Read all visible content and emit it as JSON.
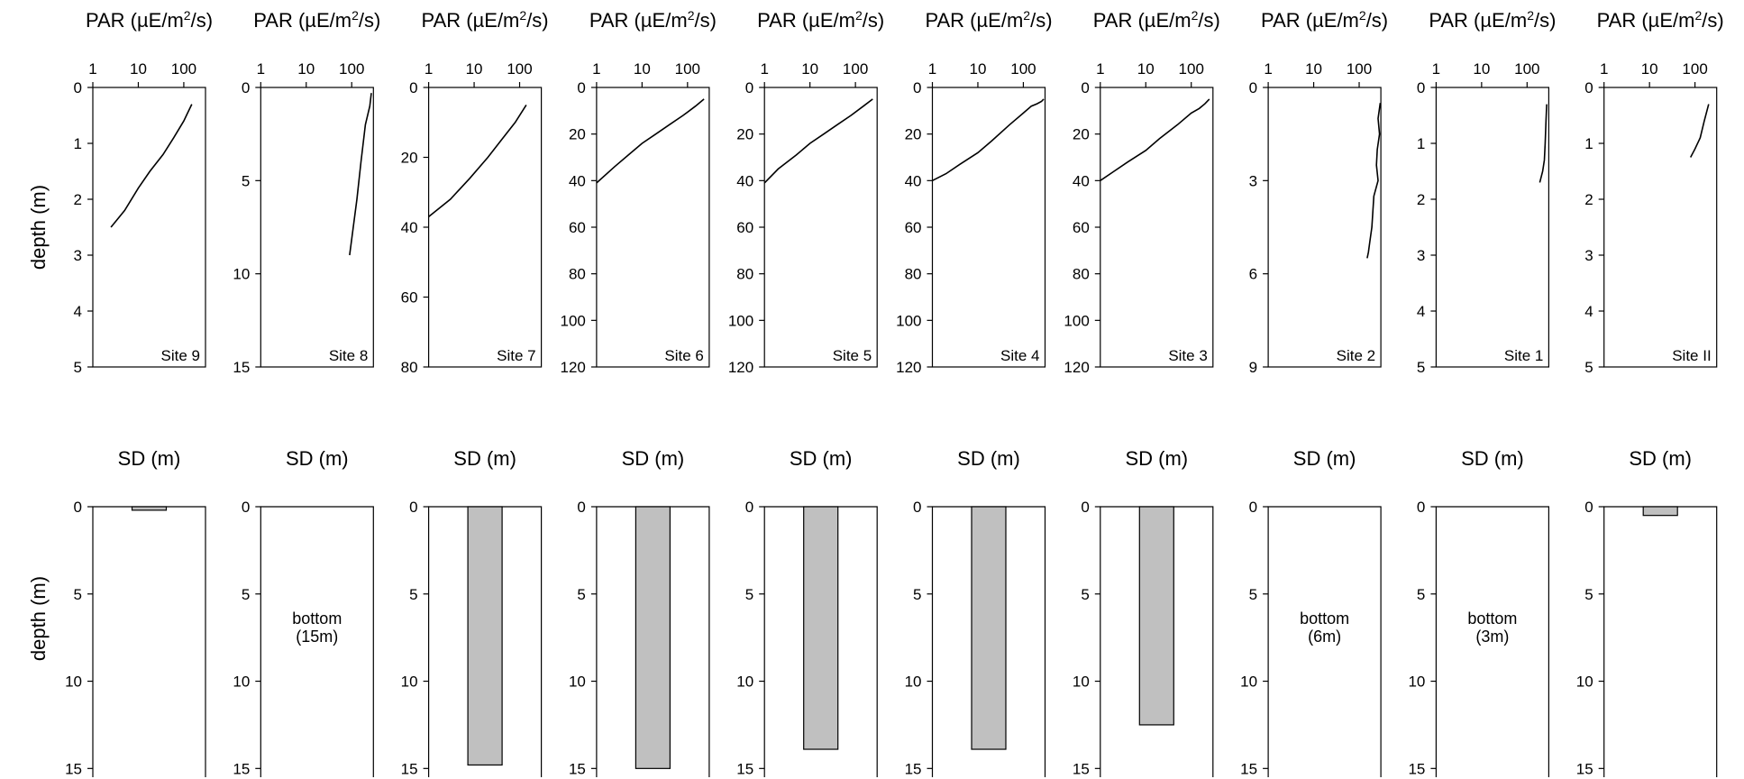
{
  "chart_data": [
    {
      "type": "line",
      "site": "Site 9",
      "title": "PAR (µE/m2/s)",
      "title_base": "PAR (µE/m",
      "title_sup": "2",
      "title_end": "/s)",
      "xscale": "log",
      "xlim": [
        1,
        300
      ],
      "xticks": [
        "1",
        "10",
        "100"
      ],
      "ylabel": "depth (m)",
      "ylim": [
        0,
        5
      ],
      "yticks": [
        "0",
        "1",
        "2",
        "3",
        "4",
        "5"
      ],
      "profile": {
        "par": [
          150,
          100,
          60,
          35,
          18,
          10,
          5,
          2.5
        ],
        "depth": [
          0.3,
          0.6,
          0.9,
          1.2,
          1.5,
          1.8,
          2.2,
          2.5
        ]
      }
    },
    {
      "type": "line",
      "site": "Site 8",
      "title": "PAR (µE/m2/s)",
      "title_base": "PAR (µE/m",
      "title_sup": "2",
      "title_end": "/s)",
      "xscale": "log",
      "xlim": [
        1,
        300
      ],
      "xticks": [
        "1",
        "10",
        "100"
      ],
      "ylim": [
        0,
        15
      ],
      "yticks": [
        "0",
        "5",
        "10",
        "15"
      ],
      "profile": {
        "par": [
          270,
          250,
          200,
          160,
          130,
          90
        ],
        "depth": [
          0.3,
          1,
          2,
          4,
          6,
          9
        ]
      }
    },
    {
      "type": "line",
      "site": "Site 7",
      "title": "PAR (µE/m2/s)",
      "title_base": "PAR (µE/m",
      "title_sup": "2",
      "title_end": "/s)",
      "xscale": "log",
      "xlim": [
        1,
        300
      ],
      "xticks": [
        "1",
        "10",
        "100"
      ],
      "ylim": [
        0,
        80
      ],
      "yticks": [
        "0",
        "20",
        "40",
        "60",
        "80"
      ],
      "profile": {
        "par": [
          140,
          80,
          40,
          20,
          8,
          3,
          1
        ],
        "depth": [
          5,
          10,
          15,
          20,
          26,
          32,
          37
        ]
      }
    },
    {
      "type": "line",
      "site": "Site 6",
      "title": "PAR (µE/m2/s)",
      "title_base": "PAR (µE/m",
      "title_sup": "2",
      "title_end": "/s)",
      "xscale": "log",
      "xlim": [
        1,
        300
      ],
      "xticks": [
        "1",
        "10",
        "100"
      ],
      "ylim": [
        0,
        120
      ],
      "yticks": [
        "0",
        "20",
        "40",
        "60",
        "80",
        "100",
        "120"
      ],
      "profile": {
        "par": [
          230,
          150,
          80,
          40,
          20,
          10,
          5,
          2.5,
          1
        ],
        "depth": [
          5,
          8,
          12,
          16,
          20,
          24,
          29,
          34,
          41
        ]
      }
    },
    {
      "type": "line",
      "site": "Site 5",
      "title": "PAR (µE/m2/s)",
      "title_base": "PAR (µE/m",
      "title_sup": "2",
      "title_end": "/s)",
      "xscale": "log",
      "xlim": [
        1,
        300
      ],
      "xticks": [
        "1",
        "10",
        "100"
      ],
      "ylim": [
        0,
        120
      ],
      "yticks": [
        "0",
        "20",
        "40",
        "60",
        "80",
        "100",
        "120"
      ],
      "profile": {
        "par": [
          240,
          150,
          80,
          40,
          20,
          10,
          5,
          2,
          1
        ],
        "depth": [
          5,
          8,
          12,
          16,
          20,
          24,
          29,
          35,
          41
        ]
      }
    },
    {
      "type": "line",
      "site": "Site 4",
      "title": "PAR (µE/m2/s)",
      "title_base": "PAR (µE/m",
      "title_sup": "2",
      "title_end": "/s)",
      "xscale": "log",
      "xlim": [
        1,
        300
      ],
      "xticks": [
        "1",
        "10",
        "100"
      ],
      "ylim": [
        0,
        120
      ],
      "yticks": [
        "0",
        "20",
        "40",
        "60",
        "80",
        "100",
        "120"
      ],
      "profile": {
        "par": [
          280,
          250,
          200,
          150,
          100,
          50,
          20,
          10,
          4,
          2,
          1
        ],
        "depth": [
          5,
          6,
          7,
          8,
          11,
          16,
          23,
          28,
          33,
          37,
          40
        ]
      }
    },
    {
      "type": "line",
      "site": "Site 3",
      "title": "PAR (µE/m2/s)",
      "title_base": "PAR (µE/m",
      "title_sup": "2",
      "title_end": "/s)",
      "xscale": "log",
      "xlim": [
        1,
        300
      ],
      "xticks": [
        "1",
        "10",
        "100"
      ],
      "ylim": [
        0,
        120
      ],
      "yticks": [
        "0",
        "20",
        "40",
        "60",
        "80",
        "100",
        "120"
      ],
      "profile": {
        "par": [
          250,
          200,
          150,
          100,
          50,
          20,
          10,
          4,
          2,
          1
        ],
        "depth": [
          5,
          7,
          9,
          11,
          16,
          22,
          27,
          32,
          36,
          40
        ]
      }
    },
    {
      "type": "line",
      "site": "Site 2",
      "title": "PAR (µE/m2/s)",
      "title_base": "PAR (µE/m",
      "title_sup": "2",
      "title_end": "/s)",
      "xscale": "log",
      "xlim": [
        1,
        300
      ],
      "xticks": [
        "1",
        "10",
        "100"
      ],
      "ylim": [
        0,
        9
      ],
      "yticks": [
        "0",
        "3",
        "6",
        "9"
      ],
      "profile": {
        "par": [
          290,
          260,
          280,
          250,
          240,
          260,
          210,
          200,
          190,
          170,
          160,
          150
        ],
        "depth": [
          0.5,
          1,
          1.5,
          2,
          2.5,
          3,
          3.5,
          4,
          4.5,
          5,
          5.3,
          5.5
        ]
      }
    },
    {
      "type": "line",
      "site": "Site 1",
      "title": "PAR (µE/m2/s)",
      "title_base": "PAR (µE/m",
      "title_sup": "2",
      "title_end": "/s)",
      "xscale": "log",
      "xlim": [
        1,
        300
      ],
      "xticks": [
        "1",
        "10",
        "100"
      ],
      "ylim": [
        0,
        5
      ],
      "yticks": [
        "0",
        "1",
        "2",
        "3",
        "4",
        "5"
      ],
      "profile": {
        "par": [
          270,
          260,
          250,
          240,
          220,
          190
        ],
        "depth": [
          0.3,
          0.6,
          1,
          1.3,
          1.5,
          1.7
        ]
      }
    },
    {
      "type": "line",
      "site": "Site II",
      "title": "PAR (µE/m2/s)",
      "title_base": "PAR (µE/m",
      "title_sup": "2",
      "title_end": "/s)",
      "xscale": "log",
      "xlim": [
        1,
        300
      ],
      "xticks": [
        "1",
        "10",
        "100"
      ],
      "ylim": [
        0,
        5
      ],
      "yticks": [
        "0",
        "1",
        "2",
        "3",
        "4",
        "5"
      ],
      "profile": {
        "par": [
          200,
          160,
          130,
          100,
          80
        ],
        "depth": [
          0.3,
          0.6,
          0.9,
          1.1,
          1.25
        ]
      }
    },
    {
      "type": "bar",
      "site": "Site 9",
      "title": "SD (m)",
      "ylabel": "depth (m)",
      "ylim": [
        0,
        15.5
      ],
      "yticks": [
        "0",
        "5",
        "10",
        "15"
      ],
      "sd": 0.2,
      "note": []
    },
    {
      "type": "bar",
      "site": "Site 8",
      "title": "SD (m)",
      "ylim": [
        0,
        15.5
      ],
      "yticks": [
        "0",
        "5",
        "10",
        "15"
      ],
      "sd": null,
      "note": [
        "bottom",
        "(15m)"
      ]
    },
    {
      "type": "bar",
      "site": "Site 7",
      "title": "SD (m)",
      "ylim": [
        0,
        15.5
      ],
      "yticks": [
        "0",
        "5",
        "10",
        "15"
      ],
      "sd": 14.8,
      "note": []
    },
    {
      "type": "bar",
      "site": "Site 6",
      "title": "SD (m)",
      "ylim": [
        0,
        15.5
      ],
      "yticks": [
        "0",
        "5",
        "10",
        "15"
      ],
      "sd": 15.0,
      "note": []
    },
    {
      "type": "bar",
      "site": "Site 5",
      "title": "SD (m)",
      "ylim": [
        0,
        15.5
      ],
      "yticks": [
        "0",
        "5",
        "10",
        "15"
      ],
      "sd": 13.9,
      "note": []
    },
    {
      "type": "bar",
      "site": "Site 4",
      "title": "SD (m)",
      "ylim": [
        0,
        15.5
      ],
      "yticks": [
        "0",
        "5",
        "10",
        "15"
      ],
      "sd": 13.9,
      "note": []
    },
    {
      "type": "bar",
      "site": "Site 3",
      "title": "SD (m)",
      "ylim": [
        0,
        15.5
      ],
      "yticks": [
        "0",
        "5",
        "10",
        "15"
      ],
      "sd": 12.5,
      "note": []
    },
    {
      "type": "bar",
      "site": "Site 2",
      "title": "SD (m)",
      "ylim": [
        0,
        15.5
      ],
      "yticks": [
        "0",
        "5",
        "10",
        "15"
      ],
      "sd": null,
      "note": [
        "bottom",
        "(6m)"
      ]
    },
    {
      "type": "bar",
      "site": "Site 1",
      "title": "SD (m)",
      "ylim": [
        0,
        15.5
      ],
      "yticks": [
        "0",
        "5",
        "10",
        "15"
      ],
      "sd": null,
      "note": [
        "bottom",
        "(3m)"
      ]
    },
    {
      "type": "bar",
      "site": "Site II",
      "title": "SD (m)",
      "ylim": [
        0,
        15.5
      ],
      "yticks": [
        "0",
        "5",
        "10",
        "15"
      ],
      "sd": 0.5,
      "note": []
    }
  ]
}
